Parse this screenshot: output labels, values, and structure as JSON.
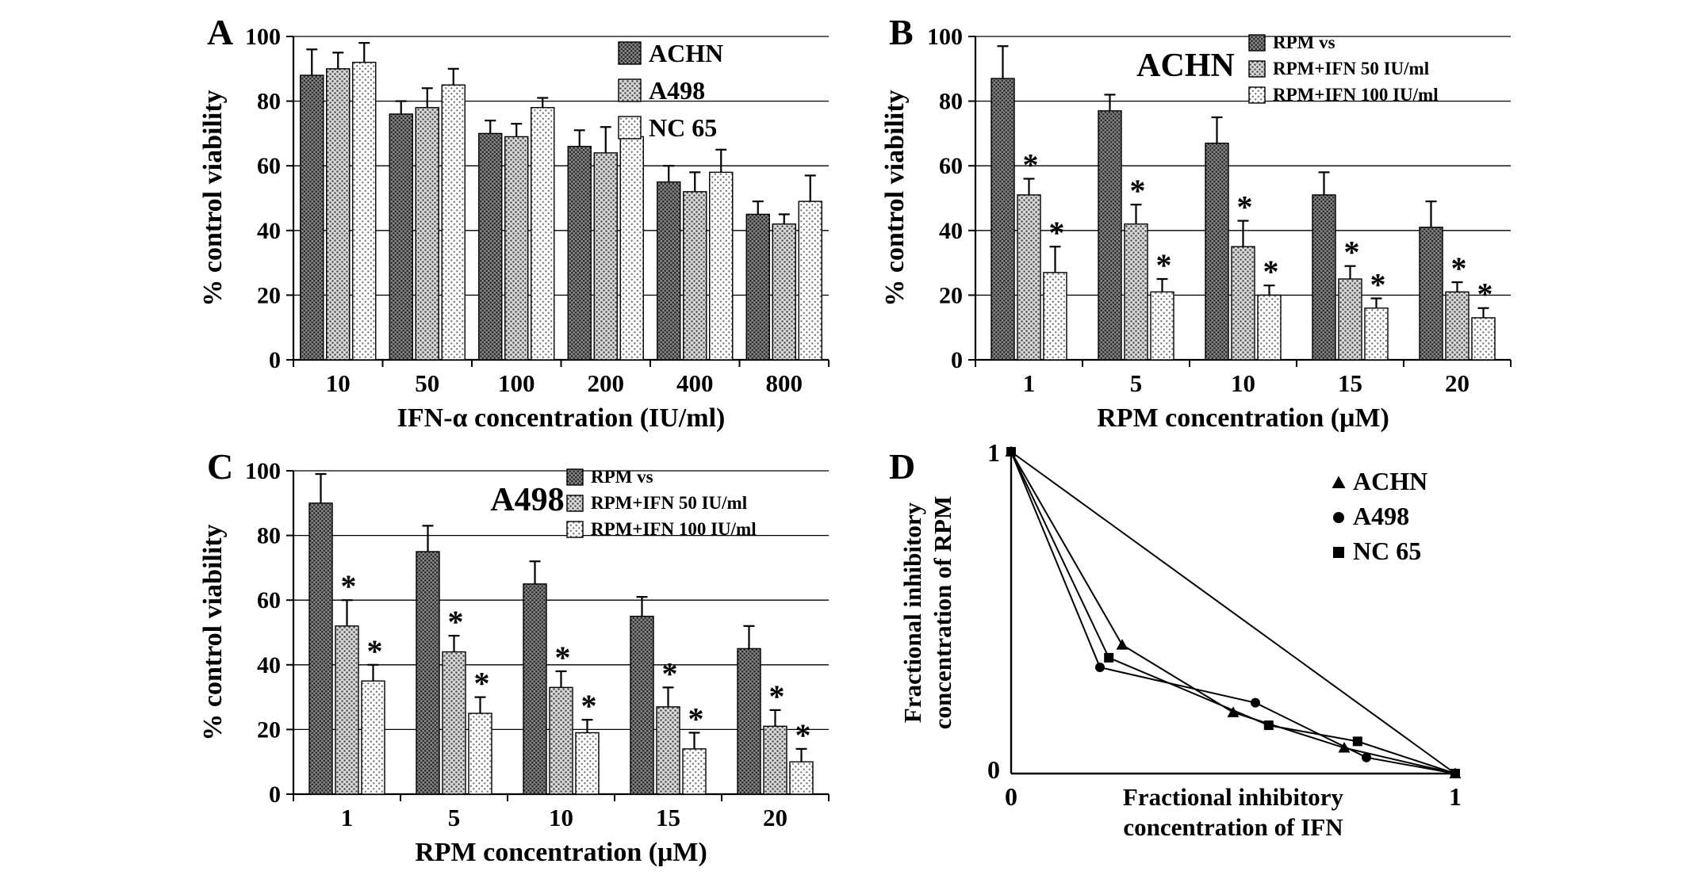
{
  "figure": {
    "background": "#ffffff",
    "ink_color": "#000000",
    "panels": [
      {
        "letter": "A"
      },
      {
        "letter": "B"
      },
      {
        "letter": "C"
      },
      {
        "letter": "D"
      }
    ]
  },
  "chart_data": [
    {
      "id": "A",
      "type": "bar",
      "title": "",
      "xlabel": "IFN-α concentration (IU/ml)",
      "ylabel": "% control viability",
      "ylim": [
        0,
        100
      ],
      "yticks": [
        0,
        20,
        40,
        60,
        80,
        100
      ],
      "grid": true,
      "legend_position": "top-right-inside",
      "star_symbol": "*",
      "categories": [
        "10",
        "50",
        "100",
        "200",
        "400",
        "800"
      ],
      "series": [
        {
          "name": "ACHN",
          "style": "dark",
          "starred": false,
          "values": [
            88,
            76,
            70,
            66,
            55,
            45
          ],
          "errors": [
            8,
            4,
            4,
            5,
            5,
            4
          ]
        },
        {
          "name": "A498",
          "style": "medium",
          "starred": false,
          "values": [
            90,
            78,
            69,
            64,
            52,
            42
          ],
          "errors": [
            5,
            6,
            4,
            8,
            6,
            3
          ]
        },
        {
          "name": "NC 65",
          "style": "light",
          "starred": false,
          "values": [
            92,
            85,
            78,
            69,
            58,
            49
          ],
          "errors": [
            6,
            5,
            3,
            4,
            7,
            8
          ]
        }
      ]
    },
    {
      "id": "B",
      "type": "bar",
      "title": "ACHN",
      "xlabel": "RPM concentration (μM)",
      "ylabel": "% control viability",
      "ylim": [
        0,
        100
      ],
      "yticks": [
        0,
        20,
        40,
        60,
        80,
        100
      ],
      "grid": true,
      "legend_position": "top-right-inside",
      "star_symbol": "*",
      "categories": [
        "1",
        "5",
        "10",
        "15",
        "20"
      ],
      "series": [
        {
          "name": "RPM  vs",
          "style": "dark",
          "starred": false,
          "values": [
            87,
            77,
            67,
            51,
            41
          ],
          "errors": [
            10,
            5,
            8,
            7,
            8
          ]
        },
        {
          "name": "RPM+IFN  50 IU/ml",
          "style": "medium",
          "starred": true,
          "values": [
            51,
            42,
            35,
            25,
            21
          ],
          "errors": [
            5,
            6,
            8,
            4,
            3
          ]
        },
        {
          "name": "RPM+IFN 100 IU/ml",
          "style": "light",
          "starred": true,
          "values": [
            27,
            21,
            20,
            16,
            13
          ],
          "errors": [
            8,
            4,
            3,
            3,
            3
          ]
        }
      ]
    },
    {
      "id": "C",
      "type": "bar",
      "title": "A498",
      "xlabel": "RPM concentration (μM)",
      "ylabel": "% control viability",
      "ylim": [
        0,
        100
      ],
      "yticks": [
        0,
        20,
        40,
        60,
        80,
        100
      ],
      "grid": true,
      "legend_position": "top-right-inside",
      "star_symbol": "*",
      "categories": [
        "1",
        "5",
        "10",
        "15",
        "20"
      ],
      "series": [
        {
          "name": "RPM  vs",
          "style": "dark",
          "starred": false,
          "values": [
            90,
            75,
            65,
            55,
            45
          ],
          "errors": [
            9,
            8,
            7,
            6,
            7
          ]
        },
        {
          "name": "RPM+IFN  50 IU/ml",
          "style": "medium",
          "starred": true,
          "values": [
            52,
            44,
            33,
            27,
            21
          ],
          "errors": [
            8,
            5,
            5,
            6,
            5
          ]
        },
        {
          "name": "RPM+IFN 100 IU/ml",
          "style": "light",
          "starred": true,
          "values": [
            35,
            25,
            19,
            14,
            10
          ],
          "errors": [
            5,
            5,
            4,
            5,
            4
          ]
        }
      ]
    },
    {
      "id": "D",
      "type": "line",
      "title": "",
      "xlabel_lines": [
        "Fractional inhibitory",
        "concentration of IFN"
      ],
      "ylabel_lines": [
        "Fractional inhibitory",
        "concentration of RPM"
      ],
      "xlim": [
        0,
        1
      ],
      "ylim": [
        0,
        1
      ],
      "xticks": [
        0,
        1
      ],
      "yticks": [
        0,
        1
      ],
      "grid": false,
      "legend_position": "top-right-inside",
      "series": [
        {
          "name": "",
          "marker": "none",
          "legend": false,
          "points": [
            [
              0,
              1
            ],
            [
              1,
              0
            ]
          ]
        },
        {
          "name": "ACHN",
          "marker": "triangle",
          "legend": true,
          "points": [
            [
              0,
              1
            ],
            [
              0.25,
              0.4
            ],
            [
              0.5,
              0.19
            ],
            [
              0.75,
              0.08
            ],
            [
              1,
              0
            ]
          ]
        },
        {
          "name": "A498",
          "marker": "circle",
          "legend": true,
          "points": [
            [
              0,
              1
            ],
            [
              0.2,
              0.33
            ],
            [
              0.55,
              0.22
            ],
            [
              0.8,
              0.05
            ],
            [
              1,
              0
            ]
          ]
        },
        {
          "name": "NC 65",
          "marker": "square",
          "legend": true,
          "points": [
            [
              0,
              1
            ],
            [
              0.22,
              0.36
            ],
            [
              0.58,
              0.15
            ],
            [
              0.78,
              0.1
            ],
            [
              1,
              0
            ]
          ]
        }
      ]
    }
  ]
}
